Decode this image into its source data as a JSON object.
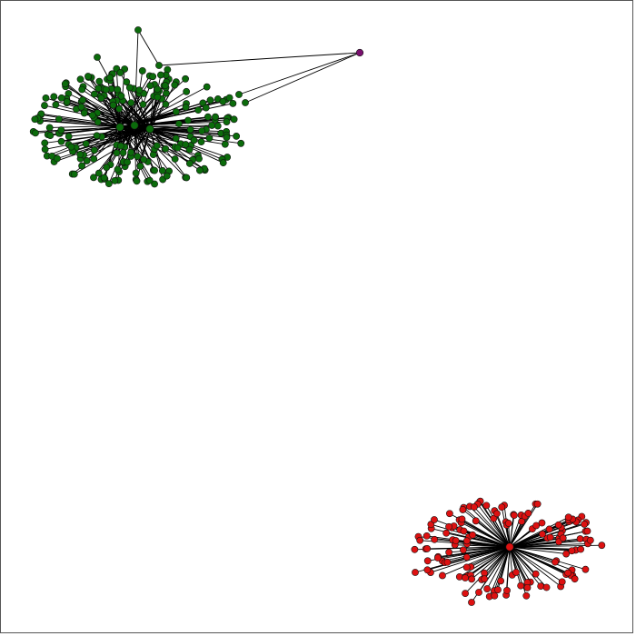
{
  "figure": {
    "type": "network-graph",
    "background": "#ffffff",
    "frame_color": "#555555",
    "edge_color": "#000000"
  },
  "clusters": [
    {
      "name": "green-cluster",
      "color": "#0b6b0b",
      "hub_count": 3,
      "leaf_count": 230
    },
    {
      "name": "red-cluster",
      "color": "#dd1111",
      "hub_count": 1,
      "leaf_count": 140
    }
  ],
  "bridge_node": {
    "color": "#7a0f6f",
    "connections": 3
  }
}
